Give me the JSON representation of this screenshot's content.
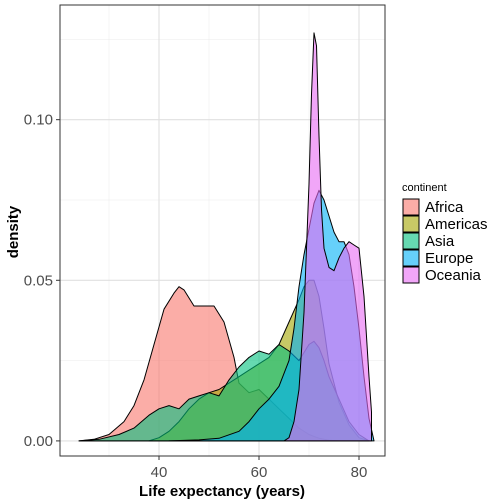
{
  "chart_data": {
    "type": "area",
    "subtype": "density",
    "xlabel": "Life expectancy (years)",
    "ylabel": "density",
    "xlim": [
      20.2,
      85.2
    ],
    "ylim": [
      -0.0047,
      0.1357
    ],
    "x_ticks": [
      40,
      60,
      80
    ],
    "x_tick_labels": [
      "40",
      "60",
      "80"
    ],
    "y_ticks": [
      0,
      0.05,
      0.1
    ],
    "y_tick_labels": [
      "0.00",
      "0.05",
      "0.10"
    ],
    "grid": true,
    "legend": {
      "title": "continent",
      "position": "right",
      "entries": [
        {
          "label": "Africa",
          "color": "#F8766D"
        },
        {
          "label": "Americas",
          "color": "#A3A500"
        },
        {
          "label": "Asia",
          "color": "#00BF7D"
        },
        {
          "label": "Europe",
          "color": "#00B0F6"
        },
        {
          "label": "Oceania",
          "color": "#E76BF3"
        }
      ]
    },
    "series": [
      {
        "name": "Africa",
        "color": "#F8766D",
        "points": [
          [
            24,
            0
          ],
          [
            27,
            0.0005
          ],
          [
            30,
            0.002
          ],
          [
            33,
            0.006
          ],
          [
            35,
            0.011
          ],
          [
            37,
            0.019
          ],
          [
            39,
            0.03
          ],
          [
            41,
            0.041
          ],
          [
            43,
            0.046
          ],
          [
            44,
            0.048
          ],
          [
            45,
            0.047
          ],
          [
            47,
            0.042
          ],
          [
            49,
            0.042
          ],
          [
            51,
            0.042
          ],
          [
            53,
            0.037
          ],
          [
            55,
            0.026
          ],
          [
            56,
            0.018
          ],
          [
            58,
            0.015
          ],
          [
            60,
            0.016
          ],
          [
            62,
            0.013
          ],
          [
            64,
            0.01
          ],
          [
            66,
            0.007
          ],
          [
            68,
            0.004
          ],
          [
            70,
            0.002
          ],
          [
            72,
            0.0008
          ],
          [
            74,
            0.0002
          ],
          [
            76,
            0
          ]
        ]
      },
      {
        "name": "Americas",
        "color": "#A3A500",
        "points": [
          [
            38,
            0
          ],
          [
            40,
            0.001
          ],
          [
            42,
            0.003
          ],
          [
            44,
            0.006
          ],
          [
            46,
            0.01
          ],
          [
            48,
            0.013
          ],
          [
            50,
            0.015
          ],
          [
            52,
            0.016
          ],
          [
            54,
            0.018
          ],
          [
            56,
            0.02
          ],
          [
            58,
            0.022
          ],
          [
            60,
            0.024
          ],
          [
            62,
            0.026
          ],
          [
            64,
            0.03
          ],
          [
            66,
            0.037
          ],
          [
            68,
            0.044
          ],
          [
            69,
            0.048
          ],
          [
            70,
            0.05
          ],
          [
            71,
            0.05
          ],
          [
            72,
            0.045
          ],
          [
            73,
            0.035
          ],
          [
            74,
            0.024
          ],
          [
            76,
            0.012
          ],
          [
            78,
            0.005
          ],
          [
            80,
            0.001
          ],
          [
            82,
            0
          ]
        ]
      },
      {
        "name": "Asia",
        "color": "#00BF7D",
        "points": [
          [
            24,
            0
          ],
          [
            28,
            0.0005
          ],
          [
            32,
            0.002
          ],
          [
            35,
            0.004
          ],
          [
            38,
            0.008
          ],
          [
            40,
            0.01
          ],
          [
            42,
            0.011
          ],
          [
            44,
            0.01
          ],
          [
            46,
            0.013
          ],
          [
            48,
            0.014
          ],
          [
            50,
            0.015
          ],
          [
            52,
            0.014
          ],
          [
            54,
            0.019
          ],
          [
            56,
            0.023
          ],
          [
            58,
            0.026
          ],
          [
            60,
            0.028
          ],
          [
            62,
            0.027
          ],
          [
            64,
            0.03
          ],
          [
            66,
            0.028
          ],
          [
            68,
            0.025
          ],
          [
            70,
            0.03
          ],
          [
            71,
            0.031
          ],
          [
            72,
            0.029
          ],
          [
            73,
            0.025
          ],
          [
            74,
            0.02
          ],
          [
            76,
            0.013
          ],
          [
            78,
            0.006
          ],
          [
            80,
            0.002
          ],
          [
            82,
            0
          ]
        ]
      },
      {
        "name": "Europe",
        "color": "#00B0F6",
        "points": [
          [
            42,
            0
          ],
          [
            48,
            0.0003
          ],
          [
            52,
            0.0008
          ],
          [
            56,
            0.003
          ],
          [
            58,
            0.006
          ],
          [
            60,
            0.01
          ],
          [
            62,
            0.013
          ],
          [
            64,
            0.017
          ],
          [
            66,
            0.025
          ],
          [
            67,
            0.035
          ],
          [
            68,
            0.048
          ],
          [
            69,
            0.058
          ],
          [
            70,
            0.066
          ],
          [
            71,
            0.074
          ],
          [
            72,
            0.078
          ],
          [
            73,
            0.075
          ],
          [
            74,
            0.07
          ],
          [
            75,
            0.065
          ],
          [
            76,
            0.062
          ],
          [
            77,
            0.062
          ],
          [
            78,
            0.058
          ],
          [
            79,
            0.048
          ],
          [
            80,
            0.035
          ],
          [
            81,
            0.02
          ],
          [
            82,
            0.007
          ],
          [
            83,
            0
          ]
        ]
      },
      {
        "name": "Oceania",
        "color": "#E76BF3",
        "points": [
          [
            65,
            0
          ],
          [
            66,
            0.001
          ],
          [
            67,
            0.006
          ],
          [
            68,
            0.016
          ],
          [
            69,
            0.04
          ],
          [
            70,
            0.08
          ],
          [
            70.5,
            0.108
          ],
          [
            71,
            0.127
          ],
          [
            71.5,
            0.123
          ],
          [
            72,
            0.095
          ],
          [
            72.5,
            0.072
          ],
          [
            73,
            0.06
          ],
          [
            74,
            0.054
          ],
          [
            75,
            0.053
          ],
          [
            76,
            0.057
          ],
          [
            77,
            0.06
          ],
          [
            78,
            0.062
          ],
          [
            79,
            0.061
          ],
          [
            80,
            0.06
          ],
          [
            81,
            0.045
          ],
          [
            82,
            0.02
          ],
          [
            82.5,
            0.009
          ]
        ]
      }
    ]
  }
}
